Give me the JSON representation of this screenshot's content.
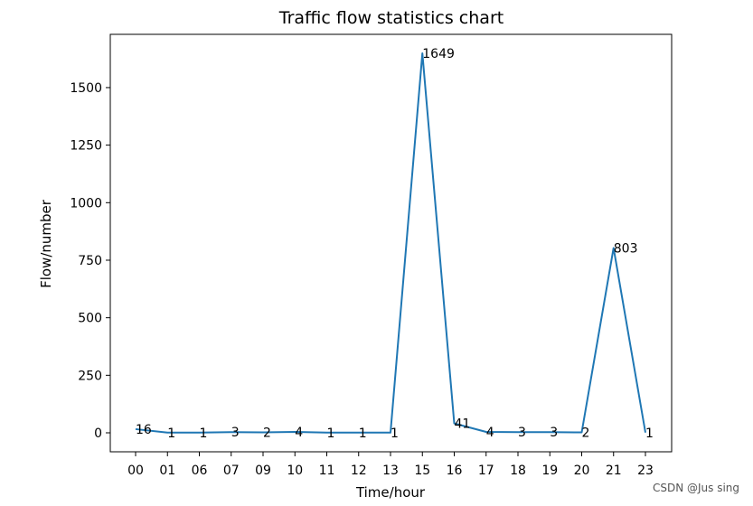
{
  "chart_data": {
    "type": "line",
    "title": "Traffic flow statistics chart",
    "xlabel": "Time/hour",
    "ylabel": "Flow/number",
    "categories": [
      "00",
      "01",
      "06",
      "07",
      "09",
      "10",
      "11",
      "12",
      "13",
      "15",
      "16",
      "17",
      "18",
      "19",
      "20",
      "21",
      "23"
    ],
    "series": [
      {
        "values": [
          16,
          1,
          1,
          3,
          2,
          4,
          1,
          1,
          1,
          1649,
          41,
          4,
          3,
          3,
          2,
          803,
          1
        ],
        "color": "#1f77b4"
      }
    ],
    "y_ticks": [
      0,
      250,
      500,
      750,
      1000,
      1250,
      1500
    ],
    "ylim": [
      -82.4,
      1731.4
    ],
    "grid": false,
    "legend": "none"
  },
  "watermark": "CSDN @Jus sing"
}
